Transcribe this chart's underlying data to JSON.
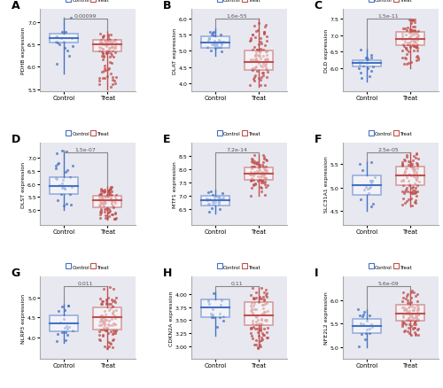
{
  "panels": [
    {
      "label": "A",
      "gene": "PDHB",
      "ylabel": "PDHB expression",
      "pval": "0.00099",
      "control": {
        "median": 6.65,
        "q1": 6.55,
        "q3": 6.75,
        "whislo": 5.85,
        "whishi": 7.1,
        "n": 18
      },
      "treat": {
        "median": 6.5,
        "q1": 6.35,
        "q3": 6.6,
        "whislo": 5.5,
        "whishi": 6.8,
        "n": 90
      },
      "ylim": [
        5.45,
        7.3
      ],
      "yticks": [
        5.5,
        6.0,
        6.5,
        7.0
      ]
    },
    {
      "label": "B",
      "gene": "DLAT",
      "ylabel": "DLAT expression",
      "pval": "1.6e-55",
      "control": {
        "median": 5.25,
        "q1": 5.1,
        "q3": 5.45,
        "whislo": 4.85,
        "whishi": 5.7,
        "n": 30
      },
      "treat": {
        "median": 4.65,
        "q1": 4.4,
        "q3": 5.0,
        "whislo": 3.9,
        "whishi": 6.0,
        "n": 90
      },
      "ylim": [
        3.75,
        6.3
      ],
      "yticks": [
        4.0,
        4.5,
        5.0,
        5.5,
        6.0
      ]
    },
    {
      "label": "C",
      "gene": "DLD",
      "ylabel": "DLD expression",
      "pval": "1.5e-11",
      "control": {
        "median": 6.15,
        "q1": 6.05,
        "q3": 6.25,
        "whislo": 5.6,
        "whishi": 6.6,
        "n": 18
      },
      "treat": {
        "median": 6.9,
        "q1": 6.7,
        "q3": 7.1,
        "whislo": 6.0,
        "whishi": 7.5,
        "n": 90
      },
      "ylim": [
        5.3,
        7.8
      ],
      "yticks": [
        6.0,
        6.5,
        7.0,
        7.5
      ]
    },
    {
      "label": "D",
      "gene": "DLST",
      "ylabel": "DLST expression",
      "pval": "1.5e-07",
      "control": {
        "median": 5.9,
        "q1": 5.6,
        "q3": 6.25,
        "whislo": 5.0,
        "whishi": 7.3,
        "n": 28
      },
      "treat": {
        "median": 5.35,
        "q1": 5.1,
        "q3": 5.55,
        "whislo": 4.6,
        "whishi": 5.9,
        "n": 90
      },
      "ylim": [
        4.4,
        7.6
      ],
      "yticks": [
        5.0,
        5.5,
        6.0,
        6.5,
        7.0
      ]
    },
    {
      "label": "E",
      "gene": "MTF1",
      "ylabel": "MTF1 expression",
      "pval": "7.2e-14",
      "control": {
        "median": 6.85,
        "q1": 6.65,
        "q3": 7.0,
        "whislo": 6.35,
        "whishi": 7.25,
        "n": 28
      },
      "treat": {
        "median": 7.85,
        "q1": 7.6,
        "q3": 8.05,
        "whislo": 7.0,
        "whishi": 8.55,
        "n": 90
      },
      "ylim": [
        5.9,
        9.0
      ],
      "yticks": [
        6.5,
        7.0,
        7.5,
        8.0,
        8.5
      ]
    },
    {
      "label": "F",
      "gene": "SLC31A1",
      "ylabel": "SLC31A1 expression",
      "pval": "2.5e-05",
      "control": {
        "median": 5.05,
        "q1": 4.85,
        "q3": 5.25,
        "whislo": 4.5,
        "whishi": 5.55,
        "n": 18
      },
      "treat": {
        "median": 5.25,
        "q1": 5.05,
        "q3": 5.45,
        "whislo": 4.6,
        "whishi": 5.75,
        "n": 90
      },
      "ylim": [
        4.2,
        5.95
      ],
      "yticks": [
        4.5,
        5.0,
        5.5
      ]
    },
    {
      "label": "G",
      "gene": "NLRP3",
      "ylabel": "NLRP3 expression",
      "pval": "0.011",
      "control": {
        "median": 4.35,
        "q1": 4.15,
        "q3": 4.55,
        "whislo": 3.85,
        "whishi": 4.85,
        "n": 18
      },
      "treat": {
        "median": 4.5,
        "q1": 4.2,
        "q3": 4.75,
        "whislo": 3.7,
        "whishi": 5.3,
        "n": 90
      },
      "ylim": [
        3.45,
        5.55
      ],
      "yticks": [
        4.0,
        4.5,
        5.0
      ]
    },
    {
      "label": "H",
      "gene": "CDKN2A",
      "ylabel": "CDKN2A expression",
      "pval": "0.11",
      "control": {
        "median": 3.75,
        "q1": 3.55,
        "q3": 3.9,
        "whislo": 3.2,
        "whishi": 4.05,
        "n": 18
      },
      "treat": {
        "median": 3.6,
        "q1": 3.4,
        "q3": 3.85,
        "whislo": 2.95,
        "whishi": 4.15,
        "n": 90
      },
      "ylim": [
        2.75,
        4.35
      ],
      "yticks": [
        3.0,
        3.25,
        3.5,
        3.75,
        4.0
      ]
    },
    {
      "label": "I",
      "gene": "NFE2L2",
      "ylabel": "NFE2L2 expression",
      "pval": "5.6e-09",
      "control": {
        "median": 5.45,
        "q1": 5.3,
        "q3": 5.6,
        "whislo": 5.0,
        "whishi": 5.8,
        "n": 18
      },
      "treat": {
        "median": 5.7,
        "q1": 5.55,
        "q3": 5.9,
        "whislo": 5.25,
        "whishi": 6.2,
        "n": 90
      },
      "ylim": [
        4.75,
        6.5
      ],
      "yticks": [
        5.0,
        5.5,
        6.0
      ]
    }
  ],
  "control_color": "#4472C4",
  "treat_color": "#C0504D",
  "bg_color": "#E8E8F0"
}
